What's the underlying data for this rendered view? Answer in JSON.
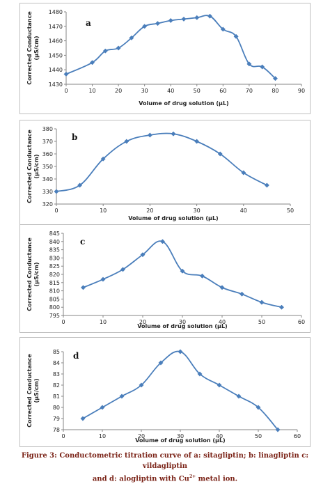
{
  "caption": {
    "label": "Figure 3:",
    "line1": "Conductometric  titration curve of a: sitagliptin; b: linagliptin c: vildagliptin",
    "line2_pre": "and d: alogliptin with Cu",
    "line2_sup": "2+",
    "line2_post": " metal  ion."
  },
  "colors": {
    "series": "#4a7ebb",
    "axis": "#868686"
  },
  "chart_data": [
    {
      "type": "line",
      "panel_label": "a",
      "xlabel": "Volume of drug solution (µL)",
      "ylabel": "Corrected Conductance (µS/cm)",
      "xlim": [
        0,
        90
      ],
      "ylim": [
        1430,
        1480
      ],
      "xticks": [
        0,
        10,
        20,
        30,
        40,
        50,
        60,
        70,
        80,
        90
      ],
      "yticks": [
        1430,
        1440,
        1450,
        1460,
        1470,
        1480
      ],
      "grid": false,
      "x": [
        0,
        10,
        15,
        20,
        25,
        30,
        35,
        40,
        45,
        50,
        55,
        60,
        65,
        70,
        75,
        80
      ],
      "y": [
        1437,
        1445,
        1453,
        1455,
        1462,
        1470,
        1472,
        1474,
        1475,
        1476,
        1477,
        1468,
        1463,
        1444,
        1442,
        1434
      ]
    },
    {
      "type": "line",
      "panel_label": "b",
      "xlabel": "Volume of drug solution (µL)",
      "ylabel": "Corrected Conductance (µS/cm)",
      "xlim": [
        0,
        50
      ],
      "ylim": [
        320,
        380
      ],
      "xticks": [
        0,
        10,
        20,
        30,
        40,
        50
      ],
      "yticks": [
        320,
        330,
        340,
        350,
        360,
        370,
        380
      ],
      "grid": false,
      "x": [
        0,
        5,
        10,
        15,
        20,
        25,
        30,
        35,
        40,
        45
      ],
      "y": [
        330,
        335,
        356,
        370,
        375,
        376,
        370,
        360,
        345,
        335
      ]
    },
    {
      "type": "line",
      "panel_label": "c",
      "xlabel": "Volume of drug solution (µL)",
      "ylabel": "Corrected Conductance (µS/cm)",
      "xlim": [
        0,
        60
      ],
      "ylim": [
        795,
        845
      ],
      "xticks": [
        0,
        10,
        20,
        30,
        40,
        50,
        60
      ],
      "yticks": [
        795,
        800,
        805,
        810,
        815,
        820,
        825,
        830,
        835,
        840,
        845
      ],
      "grid": false,
      "x": [
        5,
        10,
        15,
        20,
        25,
        30,
        35,
        40,
        45,
        50,
        55
      ],
      "y": [
        812,
        817,
        823,
        832,
        840,
        822,
        819,
        812,
        808,
        803,
        800
      ]
    },
    {
      "type": "line",
      "panel_label": "d",
      "xlabel": "Volume of drug solution (µL)",
      "ylabel": "Corrected Conductance (µS/cm)",
      "xlim": [
        0,
        60
      ],
      "ylim": [
        78,
        85
      ],
      "xticks": [
        0,
        10,
        20,
        30,
        40,
        50,
        60
      ],
      "yticks": [
        78,
        79,
        80,
        81,
        82,
        83,
        84,
        85
      ],
      "grid": false,
      "x": [
        5,
        10,
        15,
        20,
        25,
        30,
        35,
        40,
        45,
        50,
        55
      ],
      "y": [
        79,
        80,
        81,
        82,
        84,
        85,
        83,
        82,
        81,
        80,
        78
      ]
    }
  ]
}
